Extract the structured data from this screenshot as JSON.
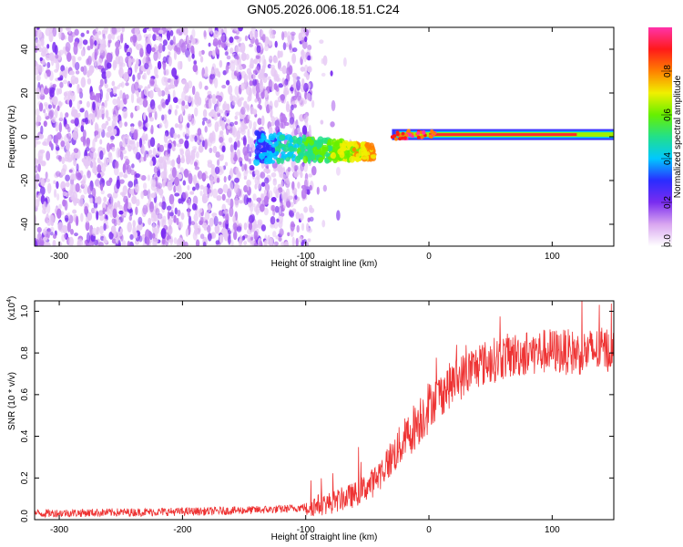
{
  "chart_data": [
    {
      "type": "heatmap",
      "title": "GN05.2026.006.18.51.C24",
      "xlabel": "Height of straight line (km)",
      "ylabel": "Frequency (Hz)",
      "xlim": [
        -320,
        150
      ],
      "ylim": [
        -50,
        50
      ],
      "xticks": [
        -300,
        -200,
        -100,
        0,
        100
      ],
      "yticks": [
        -40,
        -20,
        0,
        20,
        40
      ],
      "colorbar": {
        "label": "Normalized spectral amplitude",
        "range": [
          0.0,
          1.0
        ],
        "ticks": [
          "0.0",
          "0.2",
          "0.4",
          "0.6",
          "0.8"
        ],
        "colors": [
          "#ffffff",
          "#d9a6f0",
          "#7a2cf0",
          "#2a2cff",
          "#00c8ff",
          "#22e08a",
          "#66f000",
          "#f0f000",
          "#ff8000",
          "#ff1a1a",
          "#ff33aa"
        ]
      },
      "regions": [
        {
          "name": "noise",
          "x_range": [
            -320,
            -95
          ],
          "freq_range": [
            -50,
            50
          ],
          "amplitude": 0.15
        },
        {
          "name": "transition",
          "x_range": [
            -140,
            -45
          ],
          "freq_center": -5,
          "amplitude": 0.35
        },
        {
          "name": "signal_line",
          "x_range": [
            -30,
            150
          ],
          "freq_center": 1,
          "amplitude": 0.95
        }
      ]
    },
    {
      "type": "line",
      "xlabel": "Height of straight line (km)",
      "ylabel": "SNR (10 * v/v)",
      "multiplier_label": "(x10",
      "multiplier_exp": "4",
      "xlim": [
        -320,
        150
      ],
      "ylim": [
        0,
        1.05
      ],
      "xticks": [
        -300,
        -200,
        -100,
        0,
        100
      ],
      "yticks": [
        "0.0",
        "0.2",
        "0.4",
        "0.6",
        "0.8",
        "1.0"
      ],
      "series": [
        {
          "name": "SNR",
          "color": "#ee3333",
          "x": [
            -320,
            -250,
            -180,
            -120,
            -100,
            -80,
            -60,
            -45,
            -35,
            -25,
            -15,
            0,
            20,
            40,
            60,
            80,
            100,
            120,
            150
          ],
          "values": [
            0.03,
            0.035,
            0.04,
            0.05,
            0.06,
            0.08,
            0.12,
            0.18,
            0.26,
            0.34,
            0.42,
            0.55,
            0.66,
            0.74,
            0.78,
            0.8,
            0.81,
            0.8,
            0.82
          ]
        }
      ]
    }
  ]
}
